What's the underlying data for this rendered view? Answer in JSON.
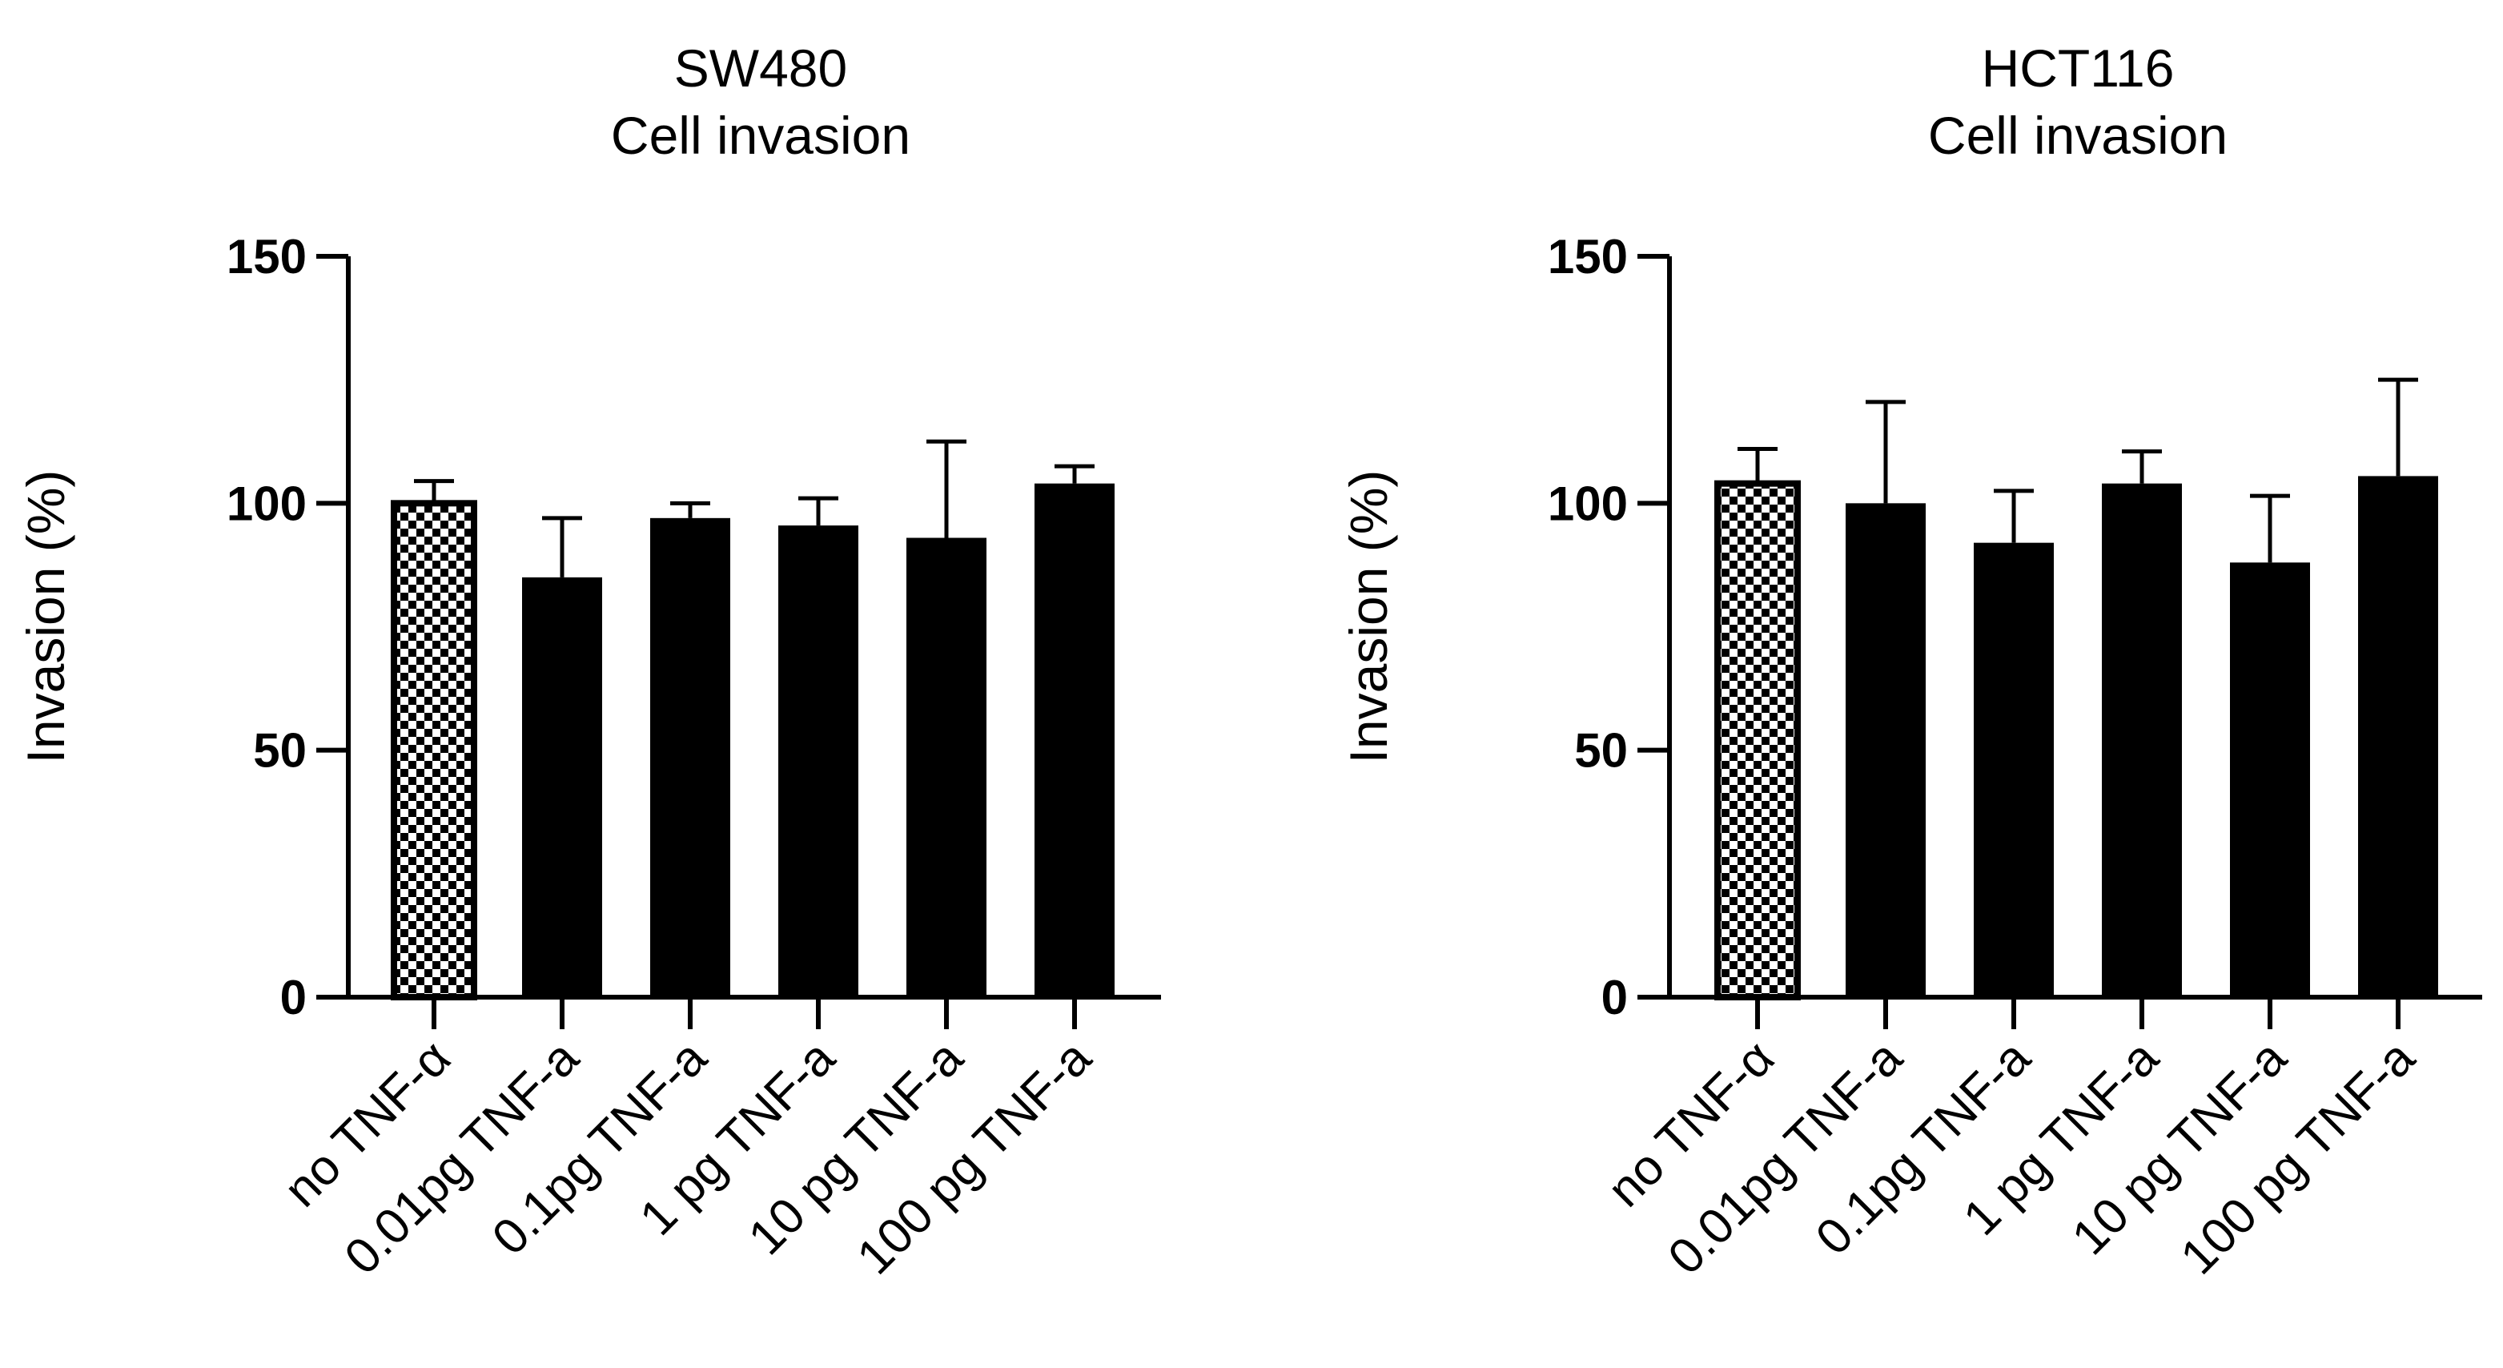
{
  "chart_data": [
    {
      "type": "bar",
      "title": [
        "SW480",
        "Cell invasion"
      ],
      "ylabel": "Invasion (%)",
      "xlabel": "",
      "ylim": [
        0,
        150
      ],
      "yticks": [
        0,
        50,
        100,
        150
      ],
      "categories": [
        "no TNF-α",
        "0.01pg TNF-a",
        "0.1pg TNF-a",
        "1 pg TNF-a",
        "10 pg TNF-a",
        "100 pg TNF-a"
      ],
      "values": [
        100,
        85,
        97,
        95.5,
        93,
        104
      ],
      "errors": [
        4.5,
        12,
        3,
        5.5,
        19.5,
        3.5
      ],
      "fills": [
        "checkered",
        "solid",
        "solid",
        "solid",
        "solid",
        "solid"
      ]
    },
    {
      "type": "bar",
      "title": [
        "HCT116",
        "Cell invasion"
      ],
      "ylabel": "Invasion (%)",
      "xlabel": "",
      "ylim": [
        0,
        150
      ],
      "yticks": [
        0,
        50,
        100,
        150
      ],
      "categories": [
        "no TNF-α",
        "0.01pg TNF-a",
        "0.1pg TNF-a",
        "1 pg TNF-a",
        "10 pg TNF-a",
        "100 pg TNF-a"
      ],
      "values": [
        104,
        100,
        92,
        104,
        88,
        105.5
      ],
      "errors": [
        7,
        20.5,
        10.5,
        6.5,
        13.5,
        19.5
      ],
      "fills": [
        "checkered",
        "solid",
        "solid",
        "solid",
        "solid",
        "solid"
      ]
    }
  ],
  "colors": {
    "bar": "#000000",
    "background": "#ffffff"
  }
}
